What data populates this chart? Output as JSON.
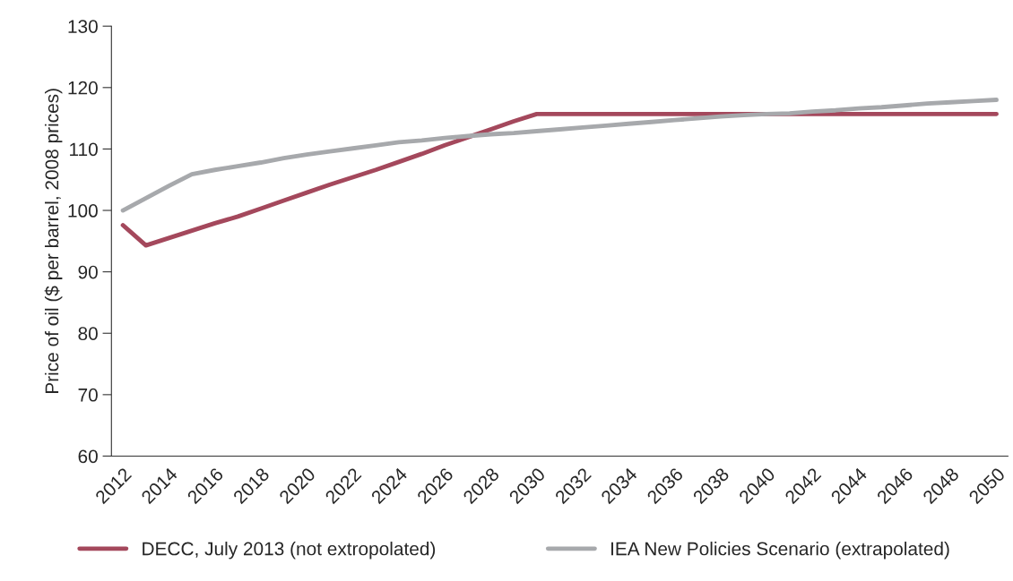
{
  "chart_data": {
    "type": "line",
    "ylabel": "Price of oil ($ per barrel, 2008 prices)",
    "categories": [
      "2012",
      null,
      "2014",
      null,
      "2016",
      null,
      "2018",
      null,
      "2020",
      null,
      "2022",
      null,
      "2024",
      null,
      "2026",
      null,
      "2028",
      null,
      "2030",
      null,
      "2032",
      null,
      "2034",
      null,
      "2036",
      null,
      "2038",
      null,
      "2040",
      null,
      "2042",
      null,
      "2044",
      null,
      "2046",
      null,
      "2048",
      null,
      "2050"
    ],
    "series": [
      {
        "name": "DECC, July 2013 (not extropolated)",
        "color": "#a4485c",
        "values": [
          97.6,
          94.3,
          95.5,
          96.7,
          97.9,
          99.0,
          100.3,
          101.6,
          102.9,
          104.2,
          105.4,
          106.6,
          107.9,
          109.2,
          110.6,
          111.9,
          113.2,
          114.5,
          115.7,
          115.7,
          115.7,
          115.7,
          115.7,
          115.7,
          115.7,
          115.7,
          115.7,
          115.7,
          115.7,
          115.7,
          115.7,
          115.7,
          115.7,
          115.7,
          115.7,
          115.7,
          115.7,
          115.7,
          115.7
        ]
      },
      {
        "name": "IEA New Policies Scenario (extrapolated)",
        "color": "#a7a9ac",
        "values": [
          100.0,
          102.0,
          104.0,
          105.9,
          106.6,
          107.2,
          107.8,
          108.5,
          109.1,
          109.6,
          110.1,
          110.6,
          111.1,
          111.4,
          111.8,
          112.1,
          112.4,
          112.6,
          112.9,
          113.2,
          113.5,
          113.8,
          114.1,
          114.4,
          114.7,
          115.0,
          115.3,
          115.5,
          115.7,
          115.8,
          116.1,
          116.3,
          116.6,
          116.8,
          117.1,
          117.4,
          117.6,
          117.8,
          118.0
        ]
      }
    ],
    "ylim": [
      60,
      130
    ],
    "yticks": [
      60,
      70,
      80,
      90,
      100,
      110,
      120,
      130
    ],
    "grid": false,
    "legend": "bottom",
    "marker": "none",
    "line_style": "solid"
  }
}
